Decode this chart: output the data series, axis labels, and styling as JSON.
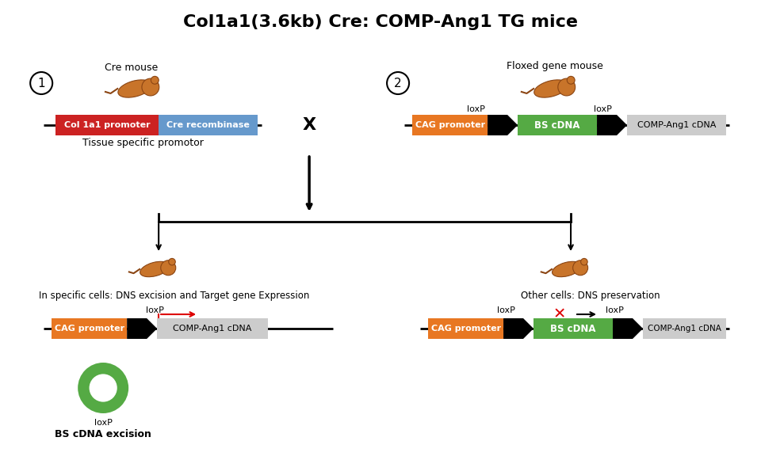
{
  "title": "Col1a1(3.6kb) Cre: COMP-Ang1 TG mice",
  "title_fontsize": 16,
  "title_fontweight": "bold",
  "bg_color": "#ffffff",
  "colors": {
    "col1a1": "#cc2222",
    "cre": "#6699cc",
    "cag": "#e87722",
    "bs_cdna": "#55aa44",
    "comp_ang1": "#cccccc",
    "line": "#111111",
    "circle_num": "#ffffff",
    "circle_border": "#111111",
    "green_circle": "#55aa44",
    "red_arrow": "#dd0000",
    "red_x": "#dd0000"
  },
  "labels": {
    "cre_mouse": "Cre mouse",
    "floxed_mouse": "Floxed gene mouse",
    "col1a1": "Col 1a1 promoter",
    "cre_rec": "Cre recombinase",
    "tissue_specific": "Tissue specific promotor",
    "cag": "CAG promoter",
    "bs_cdna": "BS cDNA",
    "comp_ang1": "COMP-Ang1 cDNA",
    "loxp": "loxP",
    "cross": "X",
    "down_arrow": "↓",
    "specific_cells": "In specific cells: DNS excision and Target gene Expression",
    "other_cells": "Other cells: DNS preservation",
    "bs_excision": "BS cDNA excision"
  }
}
